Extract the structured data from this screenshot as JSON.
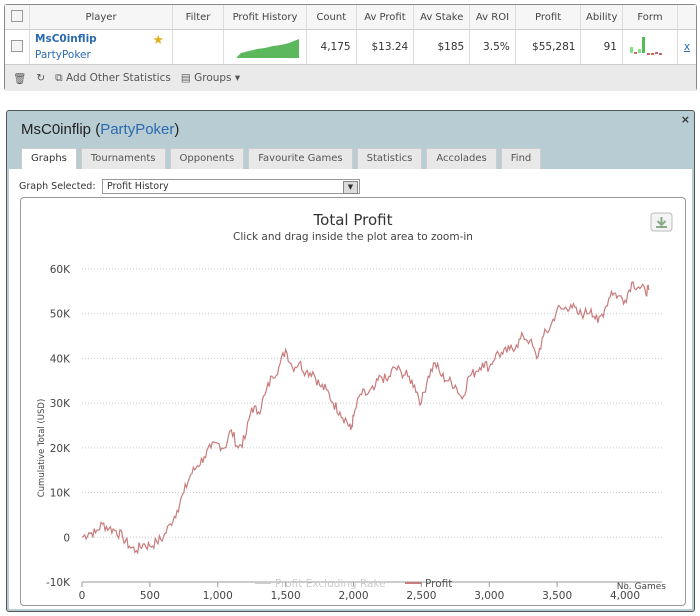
{
  "table": {
    "headers": [
      "Player",
      "Filter",
      "Profit History",
      "Count",
      "Av Profit",
      "Av Stake",
      "Av ROI",
      "Profit",
      "Ability",
      "Form"
    ],
    "row": {
      "name": "MsC0inflip",
      "site": "PartyPoker",
      "count": "4,175",
      "av_profit": "$13.24",
      "av_stake": "$185",
      "av_roi": "3.5%",
      "profit": "$55,281",
      "ability": "91",
      "remove": "x"
    },
    "footer": {
      "add_stats": "Add Other Statistics",
      "groups": "Groups"
    }
  },
  "panel": {
    "player": "MsC0inflip",
    "site": "PartyPoker",
    "close": "×",
    "tabs": [
      "Graphs",
      "Tournaments",
      "Opponents",
      "Favourite Games",
      "Statistics",
      "Accolades",
      "Find"
    ],
    "graph_label": "Graph Selected:",
    "graph_value": "Profit History"
  },
  "chart_data": {
    "type": "line",
    "title": "Total Profit",
    "subtitle": "Click and drag inside the plot area to zoom-in",
    "xlabel": "No. Games",
    "ylabel": "Cumulative Total (USD)",
    "xlim": [
      0,
      4175
    ],
    "ylim": [
      -10000,
      60000
    ],
    "xticks": [
      "0",
      "500",
      "1,000",
      "1,500",
      "2,000",
      "2,500",
      "3,000",
      "3,500",
      "4,000"
    ],
    "yticks": [
      "60K",
      "50K",
      "40K",
      "30K",
      "20K",
      "10K",
      "0",
      "-10K"
    ],
    "legend": [
      "Profit Excluding Rake",
      "Profit"
    ],
    "colors": {
      "profit": "#c87c7c",
      "excl": "#cccccc"
    },
    "series": [
      {
        "name": "Profit",
        "x": [
          0,
          50,
          100,
          150,
          200,
          250,
          300,
          350,
          400,
          450,
          500,
          550,
          600,
          650,
          700,
          750,
          800,
          850,
          900,
          950,
          1000,
          1050,
          1100,
          1150,
          1200,
          1250,
          1300,
          1350,
          1400,
          1450,
          1500,
          1550,
          1600,
          1650,
          1700,
          1750,
          1800,
          1850,
          1900,
          1950,
          1980,
          2000,
          2050,
          2100,
          2150,
          2200,
          2250,
          2300,
          2350,
          2400,
          2450,
          2500,
          2550,
          2600,
          2650,
          2700,
          2750,
          2800,
          2850,
          2900,
          2950,
          3000,
          3050,
          3100,
          3150,
          3200,
          3250,
          3300,
          3350,
          3400,
          3450,
          3500,
          3550,
          3600,
          3650,
          3700,
          3750,
          3800,
          3850,
          3900,
          3950,
          4000,
          4050,
          4100,
          4150,
          4175
        ],
        "y": [
          0,
          1000,
          1000,
          3000,
          2000,
          1500,
          0,
          -2000,
          -3000,
          -1500,
          -2000,
          -1000,
          0,
          3000,
          6000,
          10000,
          14000,
          16000,
          18000,
          20000,
          21000,
          20000,
          24000,
          20000,
          22000,
          29000,
          28000,
          32000,
          36000,
          38000,
          42000,
          38000,
          39000,
          37000,
          37000,
          34000,
          33000,
          30000,
          28000,
          26000,
          24000,
          27000,
          32000,
          32000,
          33000,
          36000,
          35000,
          38000,
          37000,
          36000,
          34000,
          30000,
          36000,
          39000,
          36000,
          35000,
          34000,
          31000,
          36000,
          37000,
          39000,
          38000,
          41000,
          41000,
          42000,
          43000,
          45000,
          44000,
          40000,
          45000,
          47000,
          51000,
          51000,
          52000,
          50000,
          50000,
          51000,
          48000,
          51000,
          55000,
          54000,
          53000,
          57000,
          56000,
          55000,
          55300
        ]
      }
    ]
  }
}
